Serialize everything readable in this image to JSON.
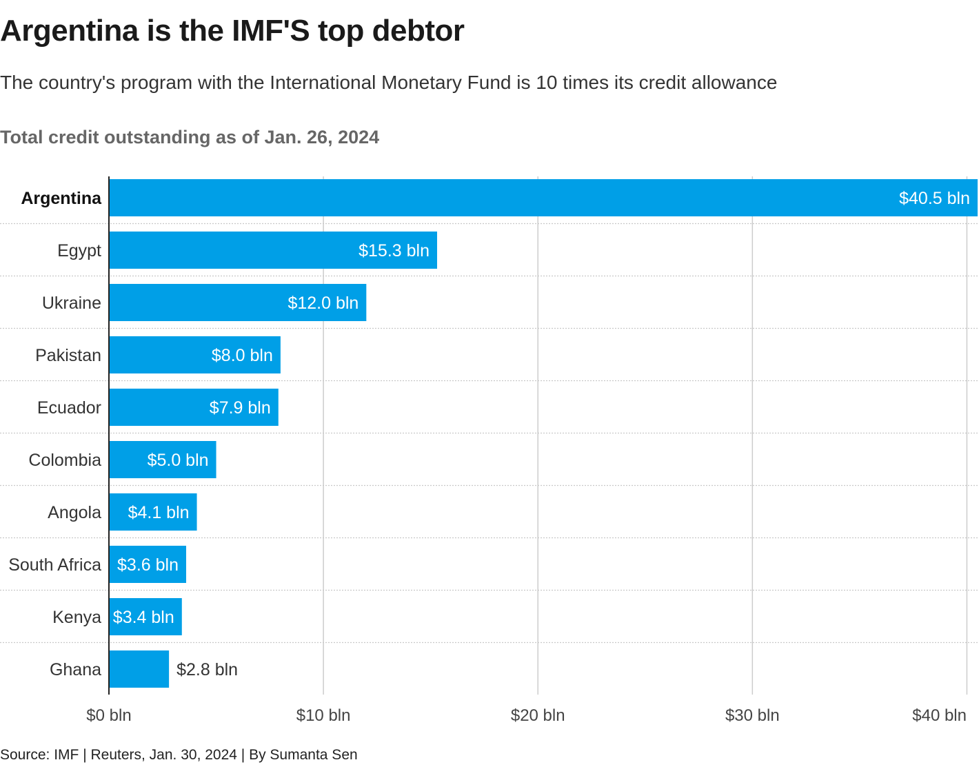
{
  "header": {
    "title": "Argentina is the IMF'S top debtor",
    "subtitle": "The country's program with the International Monetary Fund is 10 times its credit allowance"
  },
  "chart_heading": "Total credit outstanding as of Jan. 26, 2024",
  "footer": {
    "source": "Source: IMF | Reuters, Jan. 30, 2024 | By Sumanta Sen"
  },
  "colors": {
    "bar": "#009fe7",
    "gridline": "#cccccc",
    "separator": "#c8c8c8",
    "axis": "#222222",
    "label_inside": "#ffffff",
    "label_outside": "#333333"
  },
  "chart_data": {
    "type": "bar",
    "orientation": "horizontal",
    "title": "Total credit outstanding as of Jan. 26, 2024",
    "categories": [
      "Argentina",
      "Egypt",
      "Ukraine",
      "Pakistan",
      "Ecuador",
      "Colombia",
      "Angola",
      "South Africa",
      "Kenya",
      "Ghana"
    ],
    "values": [
      40.5,
      15.3,
      12.0,
      8.0,
      7.9,
      5.0,
      4.1,
      3.6,
      3.4,
      2.8
    ],
    "value_labels": [
      "$40.5 bln",
      "$15.3 bln",
      "$12.0 bln",
      "$8.0 bln",
      "$7.9 bln",
      "$5.0 bln",
      "$4.1 bln",
      "$3.6 bln",
      "$3.4 bln",
      "$2.8 bln"
    ],
    "highlight_category": "Argentina",
    "xlim": [
      0,
      40.5
    ],
    "x_ticks": [
      0,
      10,
      20,
      30,
      40
    ],
    "x_tick_labels": [
      "$0 bln",
      "$10 bln",
      "$20 bln",
      "$30 bln",
      "$40 bln"
    ],
    "xlabel": "",
    "ylabel": "",
    "grid": true,
    "legend": "none"
  }
}
